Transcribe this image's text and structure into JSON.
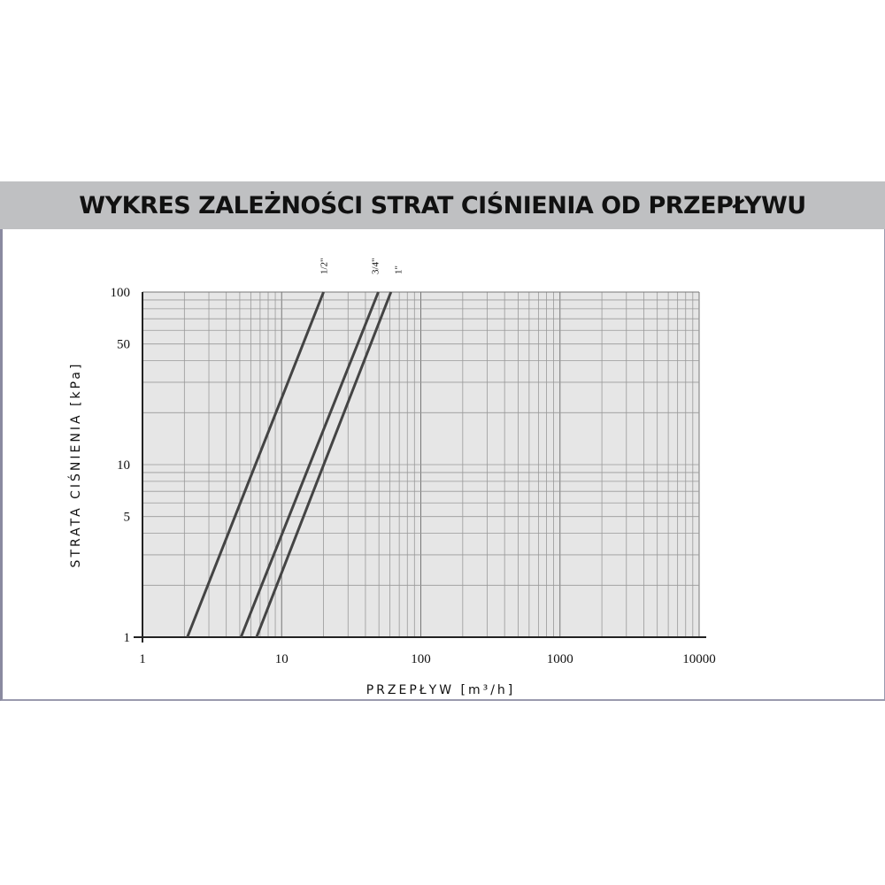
{
  "title": "WYKRES ZALEŻNOŚCI STRAT CIŚNIENIA OD PRZEPŁYWU",
  "chart_data": {
    "type": "line",
    "xlabel": "PRZEPŁYW [m³/h]",
    "ylabel": "STRATA CIŚNIENIA [kPa]",
    "xscale": "log",
    "yscale": "log",
    "xlim": [
      1,
      10000
    ],
    "ylim": [
      1,
      100
    ],
    "x_ticks": [
      1,
      10,
      100,
      1000,
      10000
    ],
    "x_tick_labels": [
      "1",
      "10",
      "100",
      "1000",
      "10000"
    ],
    "y_ticks": [
      1,
      5,
      10,
      50,
      100
    ],
    "y_tick_labels": [
      "1",
      "5",
      "10",
      "50",
      "100"
    ],
    "grid": true,
    "background": "#e6e6e6",
    "line_color": "#444444",
    "series": [
      {
        "name": "1/2\"",
        "x": [
          2.1,
          20
        ],
        "y": [
          1,
          100
        ]
      },
      {
        "name": "3/4\"",
        "x": [
          5.1,
          49.5
        ],
        "y": [
          1,
          100
        ]
      },
      {
        "name": "1\"",
        "x": [
          6.6,
          61
        ],
        "y": [
          1,
          100
        ]
      }
    ]
  }
}
